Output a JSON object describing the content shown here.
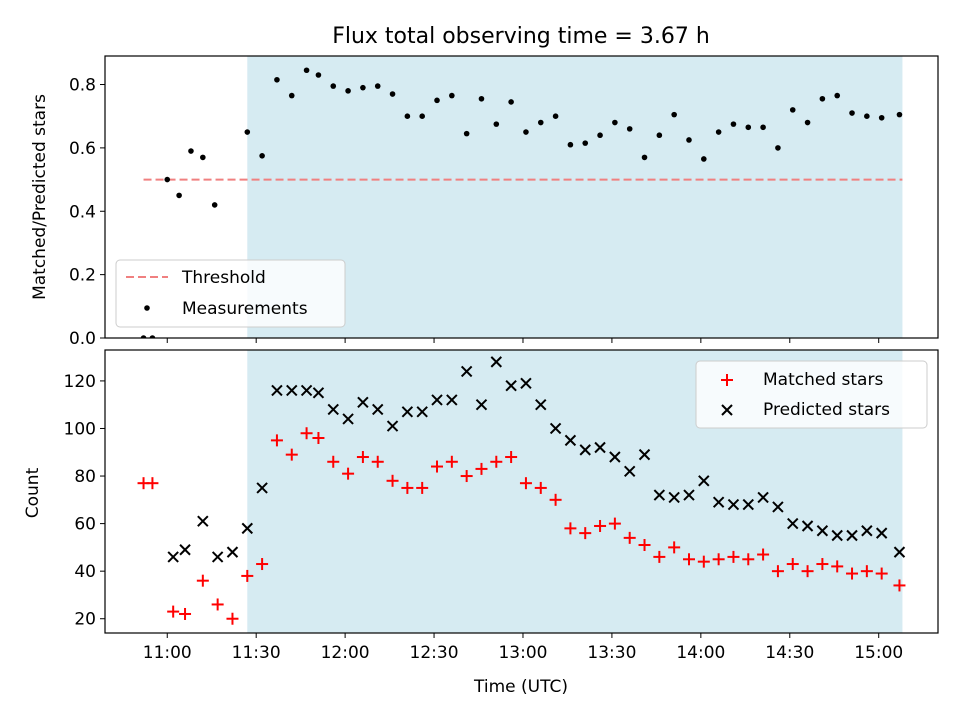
{
  "chart_data": [
    {
      "type": "scatter",
      "title": "Flux total observing time = 3.67 h",
      "xlabel": "",
      "ylabel": "Matched/Predicted stars",
      "ylim": [
        0,
        0.89
      ],
      "yticks": [
        "0.0",
        "0.2",
        "0.4",
        "0.6",
        "0.8"
      ],
      "xlim": [
        "10:39",
        "15:20"
      ],
      "shaded_span": [
        "11:27",
        "15:08"
      ],
      "shade_color": "#add8e6",
      "threshold": {
        "name": "Threshold",
        "value": 0.5,
        "from": "10:52",
        "to": "15:08",
        "color": "#f08080"
      },
      "legend_position": "lower-left",
      "series": [
        {
          "name": "Measurements",
          "color": "#000000",
          "marker": "dot",
          "points": [
            [
              "10:52",
              0.0
            ],
            [
              "10:55",
              0.0
            ],
            [
              "11:00",
              0.5
            ],
            [
              "11:04",
              0.45
            ],
            [
              "11:08",
              0.59
            ],
            [
              "11:12",
              0.57
            ],
            [
              "11:16",
              0.42
            ],
            [
              "11:27",
              0.65
            ],
            [
              "11:32",
              0.575
            ],
            [
              "11:37",
              0.815
            ],
            [
              "11:42",
              0.765
            ],
            [
              "11:47",
              0.845
            ],
            [
              "11:51",
              0.83
            ],
            [
              "11:56",
              0.795
            ],
            [
              "12:01",
              0.78
            ],
            [
              "12:06",
              0.79
            ],
            [
              "12:11",
              0.795
            ],
            [
              "12:16",
              0.77
            ],
            [
              "12:21",
              0.7
            ],
            [
              "12:26",
              0.7
            ],
            [
              "12:31",
              0.75
            ],
            [
              "12:36",
              0.765
            ],
            [
              "12:41",
              0.645
            ],
            [
              "12:46",
              0.755
            ],
            [
              "12:51",
              0.675
            ],
            [
              "12:56",
              0.745
            ],
            [
              "13:01",
              0.65
            ],
            [
              "13:06",
              0.68
            ],
            [
              "13:11",
              0.7
            ],
            [
              "13:16",
              0.61
            ],
            [
              "13:21",
              0.615
            ],
            [
              "13:26",
              0.64
            ],
            [
              "13:31",
              0.68
            ],
            [
              "13:36",
              0.66
            ],
            [
              "13:41",
              0.57
            ],
            [
              "13:46",
              0.64
            ],
            [
              "13:51",
              0.705
            ],
            [
              "13:56",
              0.625
            ],
            [
              "14:01",
              0.565
            ],
            [
              "14:06",
              0.65
            ],
            [
              "14:11",
              0.675
            ],
            [
              "14:16",
              0.665
            ],
            [
              "14:21",
              0.665
            ],
            [
              "14:26",
              0.6
            ],
            [
              "14:31",
              0.72
            ],
            [
              "14:36",
              0.68
            ],
            [
              "14:41",
              0.755
            ],
            [
              "14:46",
              0.765
            ],
            [
              "14:51",
              0.71
            ],
            [
              "14:56",
              0.7
            ],
            [
              "15:01",
              0.695
            ],
            [
              "15:07",
              0.705
            ]
          ]
        }
      ]
    },
    {
      "type": "scatter",
      "xlabel": "Time (UTC)",
      "ylabel": "Count",
      "ylim": [
        14,
        133
      ],
      "yticks": [
        "20",
        "40",
        "60",
        "80",
        "100",
        "120"
      ],
      "xlim": [
        "10:39",
        "15:20"
      ],
      "xticks": [
        "11:00",
        "11:30",
        "12:00",
        "12:30",
        "13:00",
        "13:30",
        "14:00",
        "14:30",
        "15:00"
      ],
      "shaded_span": [
        "11:27",
        "15:08"
      ],
      "shade_color": "#add8e6",
      "legend_position": "upper-right",
      "series": [
        {
          "name": "Matched stars",
          "color": "#ff0000",
          "marker": "plus",
          "points": [
            [
              "10:52",
              77
            ],
            [
              "10:55",
              77
            ],
            [
              "11:02",
              23
            ],
            [
              "11:06",
              22
            ],
            [
              "11:12",
              36
            ],
            [
              "11:17",
              26
            ],
            [
              "11:22",
              20
            ],
            [
              "11:27",
              38
            ],
            [
              "11:32",
              43
            ],
            [
              "11:37",
              95
            ],
            [
              "11:42",
              89
            ],
            [
              "11:47",
              98
            ],
            [
              "11:51",
              96
            ],
            [
              "11:56",
              86
            ],
            [
              "12:01",
              81
            ],
            [
              "12:06",
              88
            ],
            [
              "12:11",
              86
            ],
            [
              "12:16",
              78
            ],
            [
              "12:21",
              75
            ],
            [
              "12:26",
              75
            ],
            [
              "12:31",
              84
            ],
            [
              "12:36",
              86
            ],
            [
              "12:41",
              80
            ],
            [
              "12:46",
              83
            ],
            [
              "12:51",
              86
            ],
            [
              "12:56",
              88
            ],
            [
              "13:01",
              77
            ],
            [
              "13:06",
              75
            ],
            [
              "13:11",
              70
            ],
            [
              "13:16",
              58
            ],
            [
              "13:21",
              56
            ],
            [
              "13:26",
              59
            ],
            [
              "13:31",
              60
            ],
            [
              "13:36",
              54
            ],
            [
              "13:41",
              51
            ],
            [
              "13:46",
              46
            ],
            [
              "13:51",
              50
            ],
            [
              "13:56",
              45
            ],
            [
              "14:01",
              44
            ],
            [
              "14:06",
              45
            ],
            [
              "14:11",
              46
            ],
            [
              "14:16",
              45
            ],
            [
              "14:21",
              47
            ],
            [
              "14:26",
              40
            ],
            [
              "14:31",
              43
            ],
            [
              "14:36",
              40
            ],
            [
              "14:41",
              43
            ],
            [
              "14:46",
              42
            ],
            [
              "14:51",
              39
            ],
            [
              "14:56",
              40
            ],
            [
              "15:01",
              39
            ],
            [
              "15:07",
              34
            ]
          ]
        },
        {
          "name": "Predicted stars",
          "color": "#000000",
          "marker": "x",
          "points": [
            [
              "11:02",
              46
            ],
            [
              "11:06",
              49
            ],
            [
              "11:12",
              61
            ],
            [
              "11:17",
              46
            ],
            [
              "11:22",
              48
            ],
            [
              "11:27",
              58
            ],
            [
              "11:32",
              75
            ],
            [
              "11:37",
              116
            ],
            [
              "11:42",
              116
            ],
            [
              "11:47",
              116
            ],
            [
              "11:51",
              115
            ],
            [
              "11:56",
              108
            ],
            [
              "12:01",
              104
            ],
            [
              "12:06",
              111
            ],
            [
              "12:11",
              108
            ],
            [
              "12:16",
              101
            ],
            [
              "12:21",
              107
            ],
            [
              "12:26",
              107
            ],
            [
              "12:31",
              112
            ],
            [
              "12:36",
              112
            ],
            [
              "12:41",
              124
            ],
            [
              "12:46",
              110
            ],
            [
              "12:51",
              128
            ],
            [
              "12:56",
              118
            ],
            [
              "13:01",
              119
            ],
            [
              "13:06",
              110
            ],
            [
              "13:11",
              100
            ],
            [
              "13:16",
              95
            ],
            [
              "13:21",
              91
            ],
            [
              "13:26",
              92
            ],
            [
              "13:31",
              88
            ],
            [
              "13:36",
              82
            ],
            [
              "13:41",
              89
            ],
            [
              "13:46",
              72
            ],
            [
              "13:51",
              71
            ],
            [
              "13:56",
              72
            ],
            [
              "14:01",
              78
            ],
            [
              "14:06",
              69
            ],
            [
              "14:11",
              68
            ],
            [
              "14:16",
              68
            ],
            [
              "14:21",
              71
            ],
            [
              "14:26",
              67
            ],
            [
              "14:31",
              60
            ],
            [
              "14:36",
              59
            ],
            [
              "14:41",
              57
            ],
            [
              "14:46",
              55
            ],
            [
              "14:51",
              55
            ],
            [
              "14:56",
              57
            ],
            [
              "15:01",
              56
            ],
            [
              "15:07",
              48
            ]
          ]
        }
      ]
    }
  ]
}
